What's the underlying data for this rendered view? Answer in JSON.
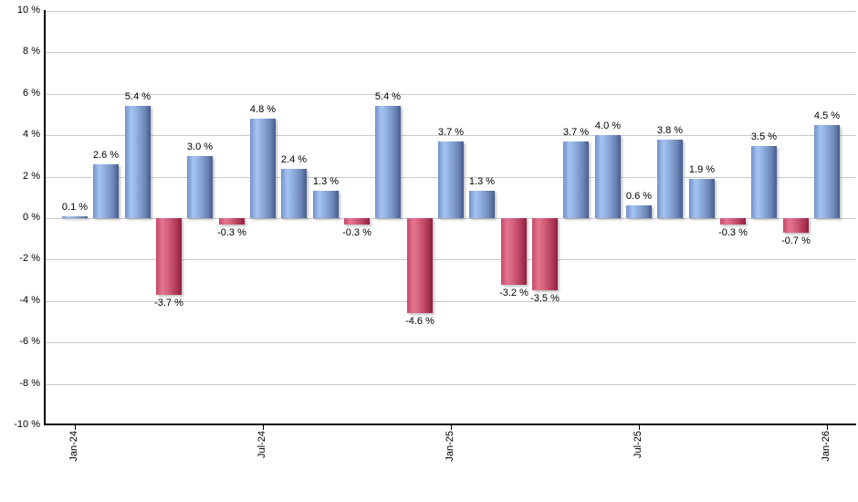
{
  "chart_data": {
    "type": "bar",
    "title": "",
    "xlabel": "",
    "ylabel": "",
    "ylim": [
      -10,
      10
    ],
    "y_tick_step": 2,
    "grid": true,
    "legend_position": "none",
    "values": [
      0.1,
      2.6,
      5.4,
      -3.7,
      3.0,
      -0.3,
      4.8,
      2.4,
      1.3,
      -0.3,
      5.4,
      -4.6,
      3.7,
      1.3,
      -3.2,
      -3.5,
      3.7,
      4.0,
      0.6,
      3.8,
      1.9,
      -0.3,
      3.5,
      -0.7,
      4.5
    ],
    "bar_labels": [
      "0.1 %",
      "2.6 %",
      "5.4 %",
      "-3.7 %",
      "3.0 %",
      "-0.3 %",
      "4.8 %",
      "2.4 %",
      "1.3 %",
      "-0.3 %",
      "5.4 %",
      "-4.6 %",
      "3.7 %",
      "1.3 %",
      "-3.2 %",
      "-3.5 %",
      "3.7 %",
      "4.0 %",
      "0.6 %",
      "3.8 %",
      "1.9 %",
      "-0.3 %",
      "3.5 %",
      "-0.7 %",
      "4.5 %"
    ],
    "x_ticks": [
      {
        "label": "Jan-24",
        "index": 0
      },
      {
        "label": "Jul-24",
        "index": 6
      },
      {
        "label": "Jan-25",
        "index": 12
      },
      {
        "label": "Jul-25",
        "index": 18
      },
      {
        "label": "Jan-26",
        "index": 24
      }
    ],
    "y_ticks": [
      {
        "label": "10 %",
        "value": 10
      },
      {
        "label": "8 %",
        "value": 8
      },
      {
        "label": "6 %",
        "value": 6
      },
      {
        "label": "4 %",
        "value": 4
      },
      {
        "label": "2 %",
        "value": 2
      },
      {
        "label": "0 %",
        "value": 0
      },
      {
        "label": "-2 %",
        "value": -2
      },
      {
        "label": "-4 %",
        "value": -4
      },
      {
        "label": "-6 %",
        "value": -6
      },
      {
        "label": "-8 %",
        "value": -8
      },
      {
        "label": "-10 %",
        "value": -10
      }
    ],
    "colors": {
      "positive_gradient": [
        "#7391c6",
        "#a6c4f2",
        "#8aa9da",
        "#6e86b6",
        "#455c90"
      ],
      "negative_gradient": [
        "#c54b6b",
        "#e4768f",
        "#d15c79",
        "#b23a58",
        "#8f1f40"
      ],
      "gridline": "#c9c9c9",
      "axis": "#000000",
      "background": "#ffffff",
      "label_text": "#000000"
    }
  }
}
